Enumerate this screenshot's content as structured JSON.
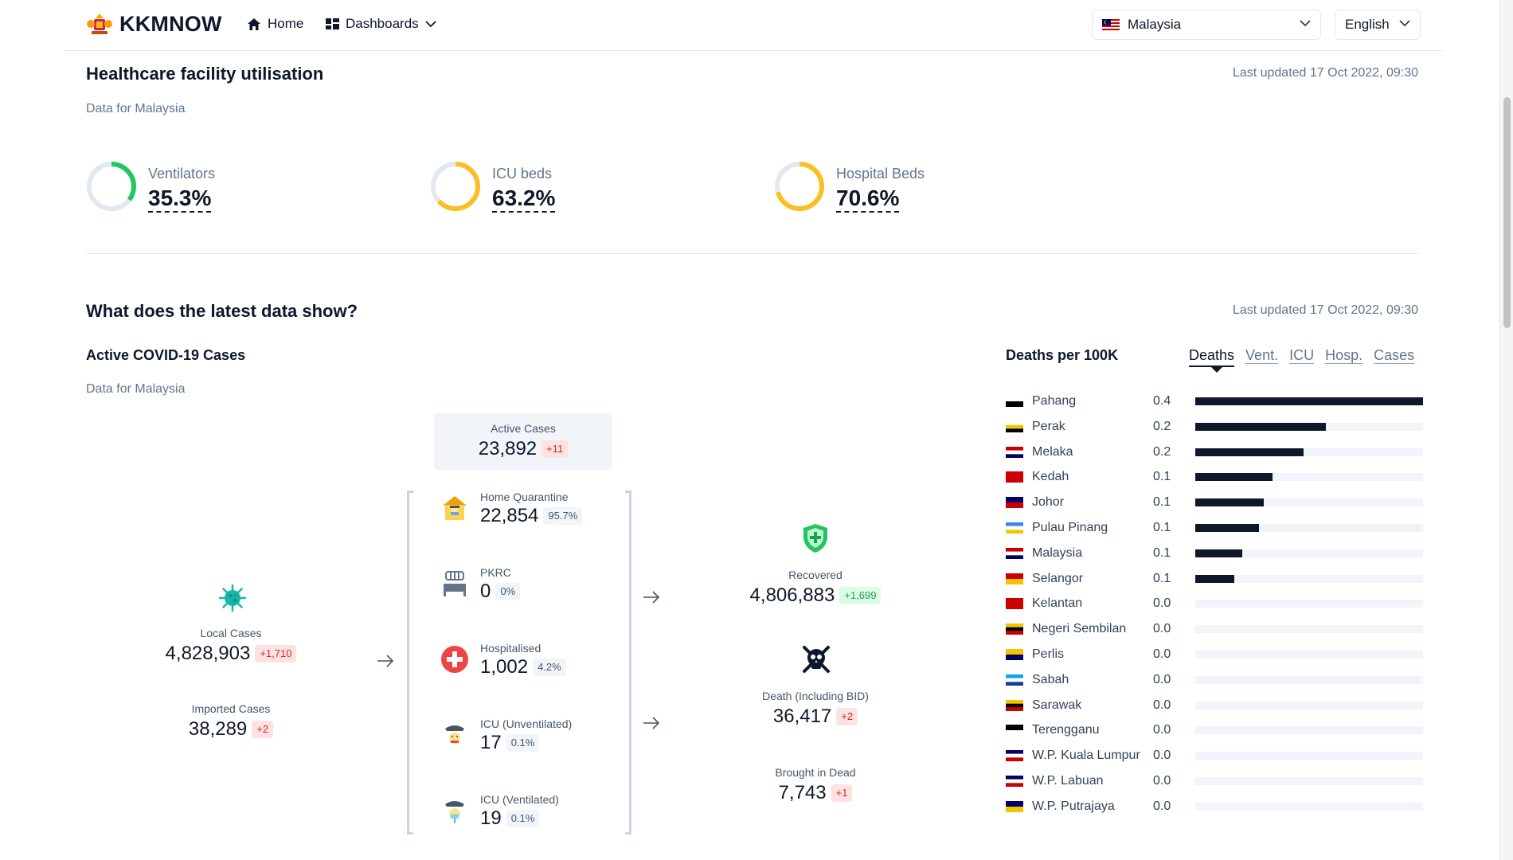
{
  "header": {
    "brand": "KKMNOW",
    "nav": {
      "home": "Home",
      "dashboards": "Dashboards"
    },
    "country_select": "Malaysia",
    "language_select": "English"
  },
  "utilisation": {
    "title": "Healthcare facility utilisation",
    "updated": "Last updated 17 Oct 2022, 09:30",
    "subtitle": "Data for Malaysia",
    "items": [
      {
        "label": "Ventilators",
        "value": "35.3%",
        "fraction": 0.353,
        "color": "#22c55e"
      },
      {
        "label": "ICU beds",
        "value": "63.2%",
        "fraction": 0.632,
        "color": "#fbbf24"
      },
      {
        "label": "Hospital Beds",
        "value": "70.6%",
        "fraction": 0.706,
        "color": "#fbbf24"
      }
    ]
  },
  "latest": {
    "title": "What does the latest data show?",
    "updated": "Last updated 17 Oct 2022, 09:30",
    "active_title": "Active COVID-19 Cases",
    "active_subtitle": "Data for Malaysia",
    "local": {
      "label": "Local Cases",
      "value": "4,828,903",
      "delta": "+1,710"
    },
    "imported": {
      "label": "Imported Cases",
      "value": "38,289",
      "delta": "+2"
    },
    "active": {
      "label": "Active Cases",
      "value": "23,892",
      "delta": "+11"
    },
    "home_quarantine": {
      "label": "Home Quarantine",
      "value": "22,854",
      "pct": "95.7%"
    },
    "pkrc": {
      "label": "PKRC",
      "value": "0",
      "pct": "0%"
    },
    "hospitalised": {
      "label": "Hospitalised",
      "value": "1,002",
      "pct": "4.2%"
    },
    "icu_unvent": {
      "label": "ICU (Unventilated)",
      "value": "17",
      "pct": "0.1%"
    },
    "icu_vent": {
      "label": "ICU (Ventilated)",
      "value": "19",
      "pct": "0.1%"
    },
    "recovered": {
      "label": "Recovered",
      "value": "4,806,883",
      "delta": "+1,699"
    },
    "death": {
      "label": "Death (Including BID)",
      "value": "36,417",
      "delta": "+2"
    },
    "bid": {
      "label": "Brought in Dead",
      "value": "7,743",
      "delta": "+1"
    }
  },
  "deaths": {
    "title": "Deaths per 100K",
    "tabs": [
      "Deaths",
      "Vent.",
      "ICU",
      "Hosp.",
      "Cases"
    ],
    "active_tab": "Deaths"
  },
  "chart_data": {
    "type": "bar",
    "title": "Deaths per 100K",
    "orientation": "horizontal",
    "categories": [
      "Pahang",
      "Perak",
      "Melaka",
      "Kedah",
      "Johor",
      "Pulau Pinang",
      "Malaysia",
      "Selangor",
      "Kelantan",
      "Negeri Sembilan",
      "Perlis",
      "Sabah",
      "Sarawak",
      "Terengganu",
      "W.P. Kuala Lumpur",
      "W.P. Labuan",
      "W.P. Putrajaya"
    ],
    "labels": [
      "0.4",
      "0.2",
      "0.2",
      "0.1",
      "0.1",
      "0.1",
      "0.1",
      "0.1",
      "0.0",
      "0.0",
      "0.0",
      "0.0",
      "0.0",
      "0.0",
      "0.0",
      "0.0",
      "0.0"
    ],
    "values": [
      0.4,
      0.23,
      0.19,
      0.135,
      0.12,
      0.112,
      0.082,
      0.069,
      0,
      0,
      0,
      0,
      0,
      0,
      0,
      0,
      0
    ],
    "xlim": [
      0,
      0.4
    ]
  }
}
